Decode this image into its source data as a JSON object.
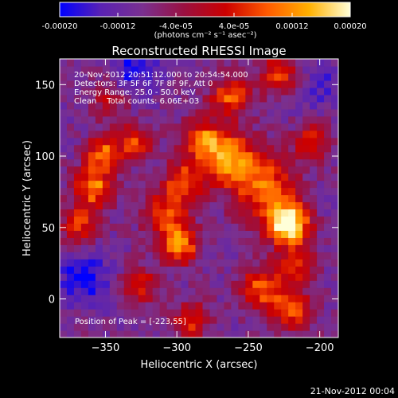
{
  "chart_data": {
    "type": "heatmap",
    "title": "Reconstructed RHESSI Image",
    "xlabel": "Heliocentric X (arcsec)",
    "ylabel": "Heliocentric Y (arcsec)",
    "xlim": [
      -382,
      -187
    ],
    "ylim": [
      -27,
      168
    ],
    "x_ticks": [
      -350,
      -300,
      -250,
      -200
    ],
    "y_ticks": [
      0,
      50,
      100,
      150
    ],
    "colorbar": {
      "range": [
        -0.0002,
        0.0002
      ],
      "tick_values": [
        -0.0002,
        -0.00012,
        -4e-05,
        4e-05,
        0.00012,
        0.0002
      ],
      "tick_labels": [
        "-0.00020",
        "-0.00012",
        "-4.0e-05",
        "4.0e-05",
        "0.00012",
        "0.00020"
      ],
      "unit_label": "(photons cm⁻² s⁻¹ asec⁻²)",
      "stops": [
        "#0000ff",
        "#5a22b2",
        "#7a3090",
        "#9a1040",
        "#cc0000",
        "#ff5a00",
        "#ffb000",
        "#ffffd8"
      ]
    },
    "peak_position": [
      -223,
      55
    ],
    "blobs": [
      {
        "x": -222,
        "y": 52,
        "amp": 1.0,
        "r": 10
      },
      {
        "x": -238,
        "y": 78,
        "amp": 0.55,
        "r": 16
      },
      {
        "x": -262,
        "y": 98,
        "amp": 0.65,
        "r": 13
      },
      {
        "x": -282,
        "y": 112,
        "amp": 0.6,
        "r": 10
      },
      {
        "x": -295,
        "y": 82,
        "amp": 0.55,
        "r": 10
      },
      {
        "x": -298,
        "y": 38,
        "amp": 0.7,
        "r": 9
      },
      {
        "x": -308,
        "y": 60,
        "amp": 0.5,
        "r": 11
      },
      {
        "x": -358,
        "y": 78,
        "amp": 0.65,
        "r": 10
      },
      {
        "x": -352,
        "y": 102,
        "amp": 0.6,
        "r": 8
      },
      {
        "x": -330,
        "y": 110,
        "amp": 0.5,
        "r": 9
      },
      {
        "x": -368,
        "y": 52,
        "amp": 0.45,
        "r": 9
      },
      {
        "x": -262,
        "y": 142,
        "amp": 0.55,
        "r": 10
      },
      {
        "x": -228,
        "y": 158,
        "amp": 0.5,
        "r": 10
      },
      {
        "x": -240,
        "y": 8,
        "amp": 0.55,
        "r": 11
      },
      {
        "x": -218,
        "y": -8,
        "amp": 0.5,
        "r": 10
      },
      {
        "x": -325,
        "y": 10,
        "amp": 0.4,
        "r": 9
      },
      {
        "x": -290,
        "y": -15,
        "amp": 0.45,
        "r": 9
      },
      {
        "x": -348,
        "y": 140,
        "amp": 0.3,
        "r": 10
      },
      {
        "x": -205,
        "y": 110,
        "amp": 0.45,
        "r": 9
      },
      {
        "x": -215,
        "y": 25,
        "amp": 0.45,
        "r": 9
      },
      {
        "x": -365,
        "y": 15,
        "amp": -0.35,
        "r": 12
      },
      {
        "x": -330,
        "y": 160,
        "amp": -0.3,
        "r": 12
      },
      {
        "x": -200,
        "y": 150,
        "amp": -0.2,
        "r": 12
      }
    ]
  },
  "info": {
    "line1": "20-Nov-2012 20:51:12.000 to 20:54:54.000",
    "line2": "Detectors: 3F 5F 6F 7F 8F 9F, Att 0",
    "line3": "Energy Range: 25.0 - 50.0 keV",
    "line4": "Clean    Total counts: 6.06E+03",
    "peak": "Position of Peak = [-223,55]"
  },
  "footer": {
    "timestamp": "21-Nov-2012 00:04"
  }
}
